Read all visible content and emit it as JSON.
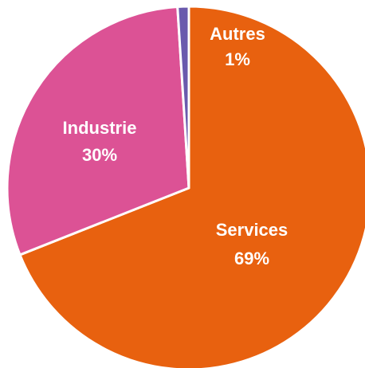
{
  "chart_data": {
    "type": "pie",
    "categories": [
      "Services",
      "Industrie",
      "Autres"
    ],
    "values": [
      69,
      30,
      1
    ],
    "value_labels": [
      "69%",
      "30%",
      "1%"
    ],
    "colors": [
      "#e8610f",
      "#dc5295",
      "#6a5aad"
    ]
  }
}
